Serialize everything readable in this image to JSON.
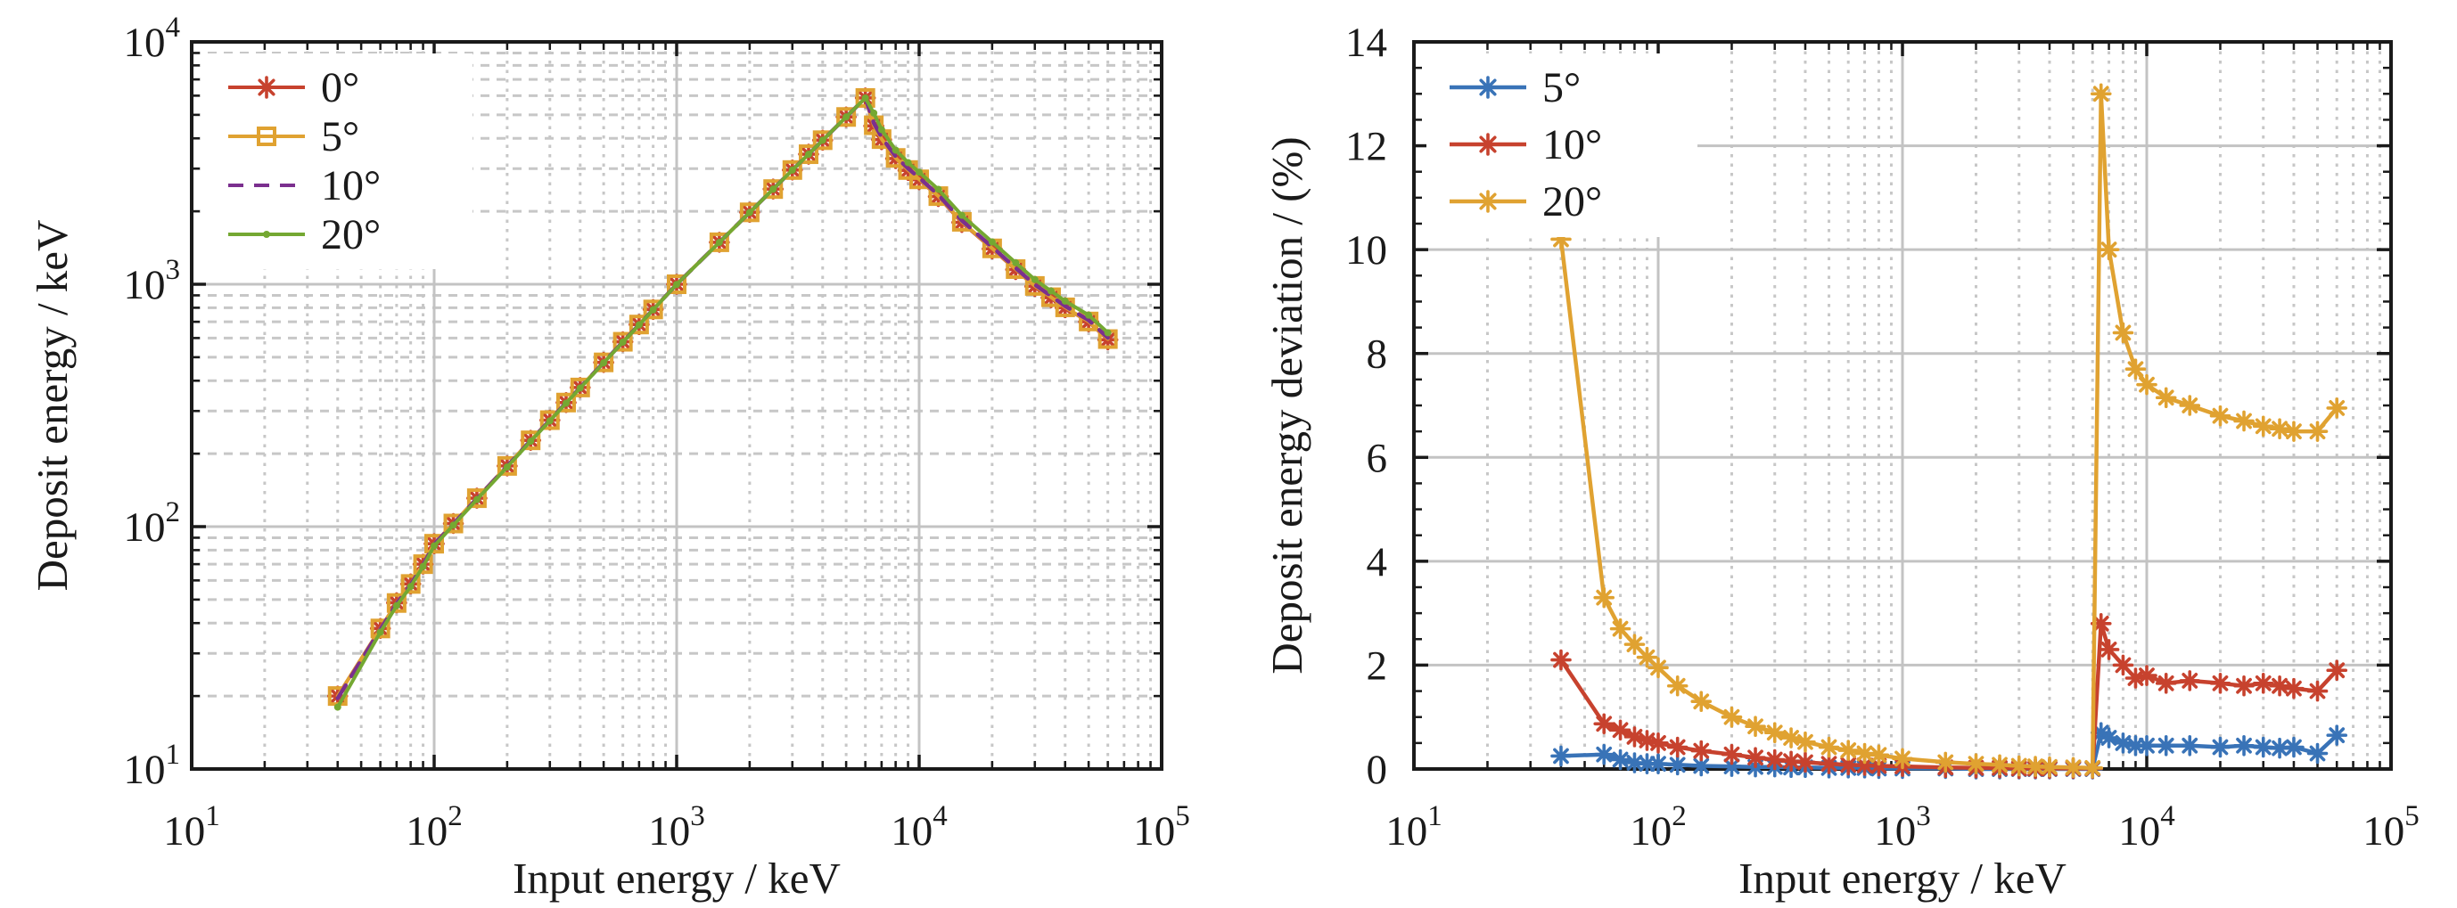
{
  "figure": {
    "background": "#ffffff",
    "text_color": "#1a1a1a",
    "axis_color": "#1a1a1a",
    "grid_major_color": "#c3c3c3",
    "grid_minor_color": "#c7c7c7",
    "legend_background": "#ffffff"
  },
  "chart_data": [
    {
      "id": "deposit-energy-chart",
      "type": "line",
      "x_scale": "log",
      "y_scale": "log",
      "xlim": [
        10,
        100000
      ],
      "ylim": [
        10,
        10000
      ],
      "xlabel": "Input energy / keV",
      "ylabel": "Deposit energy / keV",
      "grid": true,
      "legend_position": "top-left",
      "x_ticks": [
        {
          "text": "10",
          "sup": "1",
          "value": 10
        },
        {
          "text": "10",
          "sup": "2",
          "value": 100
        },
        {
          "text": "10",
          "sup": "3",
          "value": 1000
        },
        {
          "text": "10",
          "sup": "4",
          "value": 10000
        },
        {
          "text": "10",
          "sup": "5",
          "value": 100000
        }
      ],
      "y_ticks": [
        {
          "text": "10",
          "sup": "1",
          "value": 10
        },
        {
          "text": "10",
          "sup": "2",
          "value": 100
        },
        {
          "text": "10",
          "sup": "3",
          "value": 1000
        },
        {
          "text": "10",
          "sup": "4",
          "value": 10000
        }
      ],
      "x": [
        40,
        60,
        70,
        80,
        90,
        100,
        120,
        150,
        200,
        250,
        300,
        350,
        400,
        500,
        600,
        700,
        800,
        1000,
        1500,
        2000,
        2500,
        3000,
        3500,
        4000,
        5000,
        6000,
        6500,
        7000,
        8000,
        9000,
        10000,
        12000,
        15000,
        20000,
        25000,
        30000,
        35000,
        40000,
        50000,
        60000
      ],
      "series": [
        {
          "label": "0°",
          "color": "#c7422e",
          "line_style": "solid",
          "marker": "asterisk",
          "values": [
            20,
            38,
            48.5,
            58,
            70,
            85,
            103,
            131,
            178,
            227,
            275,
            325,
            375,
            476,
            579,
            682,
            787,
            1000,
            1490,
            1980,
            2470,
            2960,
            3440,
            3930,
            4900,
            5870,
            4500,
            3950,
            3300,
            2950,
            2700,
            2300,
            1800,
            1400,
            1150,
            980,
            880,
            800,
            700,
            590
          ]
        },
        {
          "label": "5°",
          "color": "#e0a231",
          "line_style": "solid",
          "marker": "open-square",
          "values": [
            20,
            38,
            48.4,
            58,
            70,
            85,
            103,
            131,
            178,
            227,
            275,
            325,
            375,
            476,
            579,
            682,
            787,
            1000,
            1490,
            1980,
            2470,
            2960,
            3440,
            3930,
            4900,
            5870,
            4530,
            3970,
            3320,
            2960,
            2710,
            2310,
            1810,
            1406,
            1155,
            984,
            884,
            803,
            702,
            594
          ]
        },
        {
          "label": "10°",
          "color": "#7b2f8e",
          "line_style": "dashed",
          "marker": "none",
          "values": [
            19.6,
            37.7,
            48.1,
            57.6,
            69.6,
            84.6,
            102.6,
            130.5,
            177.5,
            226.5,
            274.5,
            324.5,
            374.5,
            475.5,
            578.5,
            681.5,
            786.5,
            999.5,
            1489,
            1979,
            2469,
            2959,
            3439,
            3929,
            4899,
            5869,
            4626,
            4041,
            3366,
            3002,
            2749,
            2338,
            1831,
            1423,
            1168,
            996,
            894,
            812,
            711,
            601
          ]
        },
        {
          "label": "20°",
          "color": "#74a832",
          "line_style": "solid",
          "marker": "point",
          "values": [
            18,
            36.7,
            47.2,
            56.6,
            68.5,
            83.3,
            101.4,
            129.3,
            176.2,
            225.1,
            273.1,
            323.1,
            373.1,
            474,
            576.9,
            680,
            784.9,
            998,
            1488,
            1978,
            2468,
            2958,
            3438,
            3928,
            4899,
            5869,
            5085,
            4345,
            3577,
            3177,
            2900,
            2464,
            1926,
            1495,
            1227,
            1045,
            938,
            852,
            746,
            631
          ]
        }
      ]
    },
    {
      "id": "deviation-chart",
      "type": "line",
      "x_scale": "log",
      "y_scale": "linear",
      "xlim": [
        10,
        100000
      ],
      "ylim": [
        0,
        14
      ],
      "xlabel": "Input energy / keV",
      "ylabel": "Deposit energy deviation / (%)",
      "grid": true,
      "legend_position": "top-left",
      "x_ticks": [
        {
          "text": "10",
          "sup": "1",
          "value": 10
        },
        {
          "text": "10",
          "sup": "2",
          "value": 100
        },
        {
          "text": "10",
          "sup": "3",
          "value": 1000
        },
        {
          "text": "10",
          "sup": "4",
          "value": 10000
        },
        {
          "text": "10",
          "sup": "5",
          "value": 100000
        }
      ],
      "y_ticks": [
        {
          "text": "0",
          "value": 0
        },
        {
          "text": "2",
          "value": 2
        },
        {
          "text": "4",
          "value": 4
        },
        {
          "text": "6",
          "value": 6
        },
        {
          "text": "8",
          "value": 8
        },
        {
          "text": "10",
          "value": 10
        },
        {
          "text": "12",
          "value": 12
        },
        {
          "text": "14",
          "value": 14
        }
      ],
      "x": [
        40,
        60,
        70,
        80,
        90,
        100,
        120,
        150,
        200,
        250,
        300,
        350,
        400,
        500,
        600,
        700,
        800,
        1000,
        1500,
        2000,
        2500,
        3000,
        3500,
        4000,
        5000,
        6000,
        6500,
        7000,
        8000,
        9000,
        10000,
        12000,
        15000,
        20000,
        25000,
        30000,
        35000,
        40000,
        50000,
        60000
      ],
      "series": [
        {
          "label": "5°",
          "color": "#3973b7",
          "line_style": "solid",
          "marker": "asterisk",
          "values": [
            0.25,
            0.28,
            0.18,
            0.12,
            0.1,
            0.1,
            0.08,
            0.06,
            0.05,
            0.04,
            0.04,
            0.03,
            0.03,
            0.02,
            0.02,
            0.02,
            0.01,
            0.01,
            0.01,
            0,
            0,
            0,
            0,
            0,
            0,
            0,
            0.7,
            0.6,
            0.5,
            0.45,
            0.45,
            0.45,
            0.45,
            0.42,
            0.45,
            0.42,
            0.4,
            0.42,
            0.3,
            0.65
          ]
        },
        {
          "label": "10°",
          "color": "#c7422e",
          "line_style": "solid",
          "marker": "asterisk",
          "values": [
            2.1,
            0.87,
            0.75,
            0.62,
            0.55,
            0.5,
            0.42,
            0.35,
            0.28,
            0.22,
            0.18,
            0.15,
            0.13,
            0.1,
            0.08,
            0.07,
            0.06,
            0.05,
            0.03,
            0.02,
            0.02,
            0.01,
            0.01,
            0.01,
            0.01,
            0.01,
            2.8,
            2.3,
            2.0,
            1.75,
            1.8,
            1.65,
            1.7,
            1.65,
            1.6,
            1.65,
            1.6,
            1.55,
            1.5,
            1.9
          ]
        },
        {
          "label": "20°",
          "color": "#e0a231",
          "line_style": "solid",
          "marker": "asterisk",
          "values": [
            10.2,
            3.3,
            2.7,
            2.4,
            2.15,
            1.95,
            1.6,
            1.3,
            1.0,
            0.82,
            0.7,
            0.6,
            0.52,
            0.42,
            0.36,
            0.3,
            0.27,
            0.2,
            0.13,
            0.1,
            0.08,
            0.06,
            0.05,
            0.04,
            0.03,
            0.02,
            13.0,
            10.0,
            8.4,
            7.7,
            7.4,
            7.15,
            7.0,
            6.8,
            6.7,
            6.6,
            6.55,
            6.5,
            6.5,
            6.95
          ]
        }
      ]
    }
  ]
}
